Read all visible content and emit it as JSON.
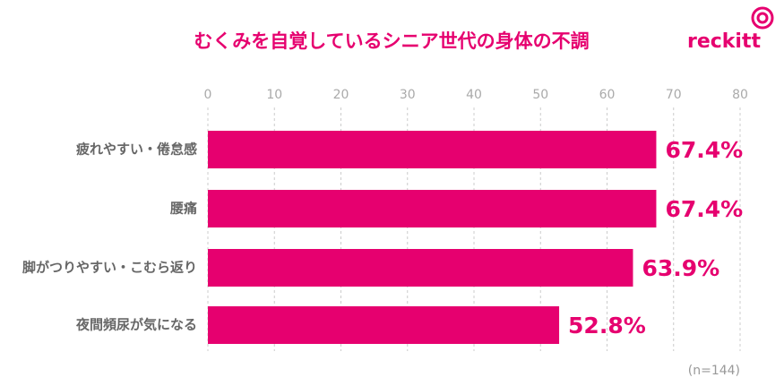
{
  "chart_data": {
    "type": "bar",
    "orientation": "horizontal",
    "title": "むくみを自覚しているシニア世代の身体の不調",
    "logo": "reckitt",
    "note": "(n=144)",
    "categories": [
      "疲れやすい・倦怠感",
      "腰痛",
      "脚がつりやすい・こむら返り",
      "夜間頻尿が気になる"
    ],
    "values": [
      67.4,
      67.4,
      63.9,
      52.8
    ],
    "value_labels": [
      "67.4%",
      "67.4%",
      "63.9%",
      "52.8%"
    ],
    "color": "#e6006f",
    "xlim": [
      0,
      80
    ],
    "xticks": [
      0,
      10,
      20,
      30,
      40,
      50,
      60,
      70,
      80
    ],
    "grid": true
  }
}
